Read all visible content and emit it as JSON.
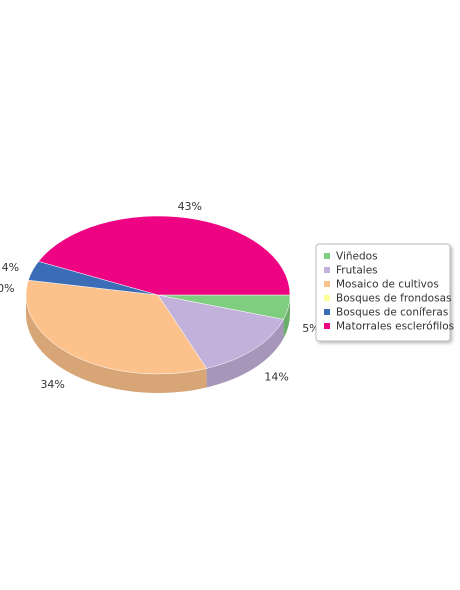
{
  "chart_data": {
    "type": "pie",
    "style": "3d",
    "legend_position": "right",
    "slices": [
      {
        "name": "Viñedos",
        "value": 5,
        "label": "5%",
        "color": "#7fcd7f"
      },
      {
        "name": "Frutales",
        "value": 14,
        "label": "14%",
        "color": "#c2b1db"
      },
      {
        "name": "Mosaico de cultivos",
        "value": 34,
        "label": "34%",
        "color": "#fdc28b"
      },
      {
        "name": "Bosques de frondosas",
        "value": 0,
        "label": "0%",
        "color": "#ffff99"
      },
      {
        "name": "Bosques de coníferas",
        "value": 4,
        "label": "4%",
        "color": "#3a6db5"
      },
      {
        "name": "Matorrales esclerófilos",
        "value": 43,
        "label": "43%",
        "color": "#ee0482"
      }
    ]
  }
}
